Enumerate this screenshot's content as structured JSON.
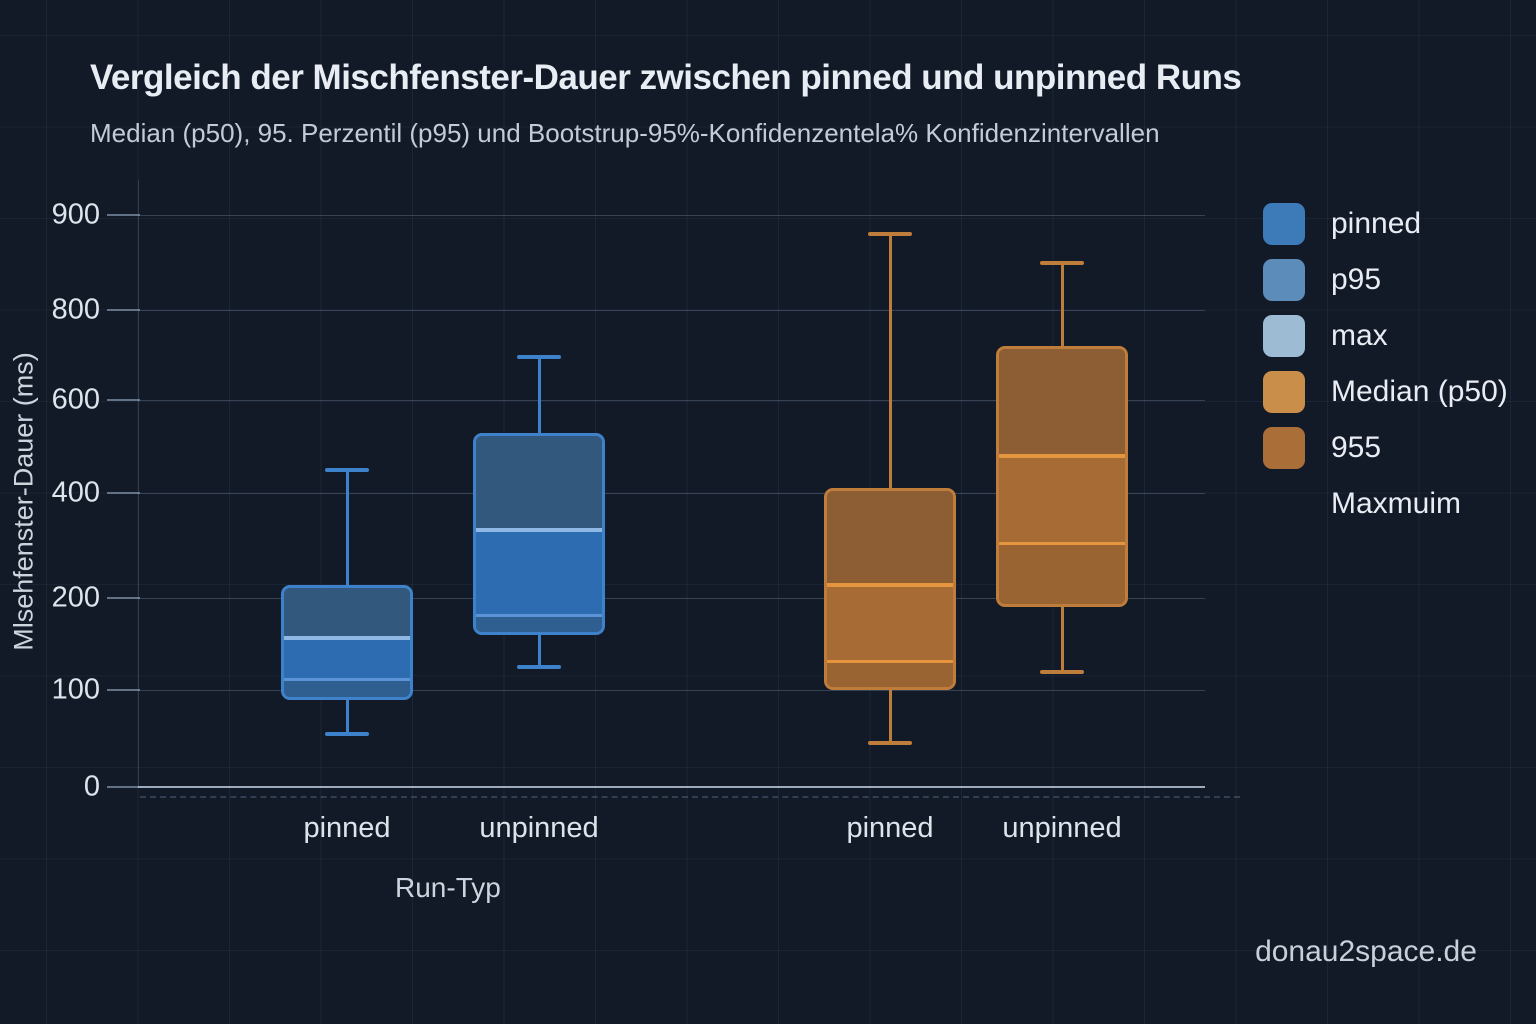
{
  "title": "Vergleich der Mischfenster-Dauer zwischen pinned und unpinned Runs",
  "subtitle": "Median (p50), 95. Perzentil (p95) und Bootstrup-95%-Konfidenzentela% Konfidenzintervallen",
  "watermark": "donau2space.de",
  "y_axis": {
    "title": "Mlsehfenster-Dauer (ms)",
    "ticks": [
      900,
      800,
      600,
      400,
      200,
      100,
      0
    ]
  },
  "x_axis": {
    "title": "Run-Typ",
    "labels": [
      "pinned",
      "unpinned",
      "pinned",
      "unpinned"
    ]
  },
  "legend": [
    {
      "label": "pinned",
      "color": "#3d7ab8"
    },
    {
      "label": "p95",
      "color": "#5b8cba"
    },
    {
      "label": "max",
      "color": "#9dbbd3"
    },
    {
      "label": "Median (p50)",
      "color": "#c98e4a"
    },
    {
      "label": "955",
      "color": "#aa6f38"
    },
    {
      "label": "Maxmuim",
      "color": null
    }
  ],
  "chart_data": {
    "type": "boxplot",
    "title": "Vergleich der Mischfenster-Dauer zwischen pinned und unpinned Runs",
    "subtitle": "Median (p50), 95. Perzentil (p95) und Bootstrup-95%-Konfidenzentela% Konfidenzintervallen",
    "xlabel": "Run-Typ",
    "ylabel": "Mlsehfenster-Dauer (ms)",
    "ylim": [
      0,
      900
    ],
    "ytick_labels": [
      900,
      800,
      600,
      400,
      200,
      100,
      0
    ],
    "axis_note": "y tick labels 900,800,600,400,200,100,0 are drawn at nearly equal pixel spacing (non-linear scale)",
    "legend_position": "right",
    "grid": true,
    "groups": [
      {
        "series": "blue",
        "category": "pinned",
        "whisker_low": 55,
        "box_low": 90,
        "inner_line_lower": 115,
        "inner_line_upper": 160,
        "box_high": 225,
        "whisker_high": 450
      },
      {
        "series": "blue",
        "category": "unpinned",
        "whisker_low": 125,
        "box_low": 160,
        "inner_line_lower": 185,
        "inner_line_upper": 335,
        "box_high": 530,
        "whisker_high": 695
      },
      {
        "series": "orange",
        "category": "pinned",
        "whisker_low": 45,
        "box_low": 100,
        "inner_line_lower": 135,
        "inner_line_upper": 230,
        "box_high": 410,
        "whisker_high": 880
      },
      {
        "series": "orange",
        "category": "unpinned",
        "whisker_low": 120,
        "box_low": 190,
        "inner_line_lower": 310,
        "inner_line_upper": 485,
        "box_high": 720,
        "whisker_high": 850
      }
    ]
  },
  "colors": {
    "background": "#121a28",
    "title_text": "#e8edf4",
    "subtitle_text": "#c2cbd6",
    "tick_text": "#dde4ec",
    "axis_title_text": "#ccd4de",
    "legend_text": "#e9edf3",
    "watermark_text": "#c9d0d9",
    "gridline": "rgba(148,170,195,0.28)",
    "zero_line": "rgba(182,198,214,0.85)",
    "tick_dash": "rgba(150,172,196,0.6)",
    "series": {
      "blue": {
        "border": "#3f82cc",
        "fill_top": "#33587e",
        "fill_mid": "#2e6cb2",
        "fill_bot": "#2f5f91",
        "line_upper": "#8fb9e4",
        "line_lower": "#5b94d6"
      },
      "orange": {
        "border": "#bf7d3c",
        "fill_top": "#8d5d33",
        "fill_mid": "#a76b36",
        "fill_bot": "#9a6332",
        "line_upper": "#e6953f",
        "line_lower": "#e6953f"
      }
    }
  }
}
